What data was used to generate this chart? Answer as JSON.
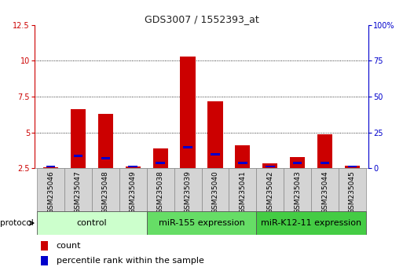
{
  "title": "GDS3007 / 1552393_at",
  "samples": [
    "GSM235046",
    "GSM235047",
    "GSM235048",
    "GSM235049",
    "GSM235038",
    "GSM235039",
    "GSM235040",
    "GSM235041",
    "GSM235042",
    "GSM235043",
    "GSM235044",
    "GSM235045"
  ],
  "count_values": [
    2.55,
    6.6,
    6.3,
    2.6,
    3.9,
    10.3,
    7.15,
    4.1,
    2.85,
    3.3,
    4.85,
    2.65
  ],
  "percentile_values": [
    2.55,
    3.3,
    3.1,
    2.55,
    2.8,
    3.9,
    3.4,
    2.8,
    2.55,
    2.8,
    2.8,
    2.55
  ],
  "ylim_left": [
    2.5,
    12.5
  ],
  "ylim_right": [
    0,
    100
  ],
  "yticks_left": [
    2.5,
    5.0,
    7.5,
    10.0,
    12.5
  ],
  "yticks_right": [
    0,
    25,
    50,
    75,
    100
  ],
  "ytick_labels_left": [
    "2.5",
    "5",
    "7.5",
    "10",
    "12.5"
  ],
  "ytick_labels_right": [
    "0",
    "25",
    "50",
    "75",
    "100%"
  ],
  "bar_color": "#cc0000",
  "percentile_color": "#0000cc",
  "bar_width": 0.55,
  "grid_color": "#000000",
  "group_boundaries": [
    {
      "label": "control",
      "start": 0,
      "end": 3,
      "color": "#ccffcc"
    },
    {
      "label": "miR-155 expression",
      "start": 4,
      "end": 7,
      "color": "#66dd66"
    },
    {
      "label": "miR-K12-11 expression",
      "start": 8,
      "end": 11,
      "color": "#44cc44"
    }
  ],
  "legend_count_label": "count",
  "legend_percentile_label": "percentile rank within the sample",
  "protocol_label": "protocol",
  "title_fontsize": 9,
  "tick_fontsize": 7,
  "sample_fontsize": 6.5,
  "group_fontsize": 8
}
